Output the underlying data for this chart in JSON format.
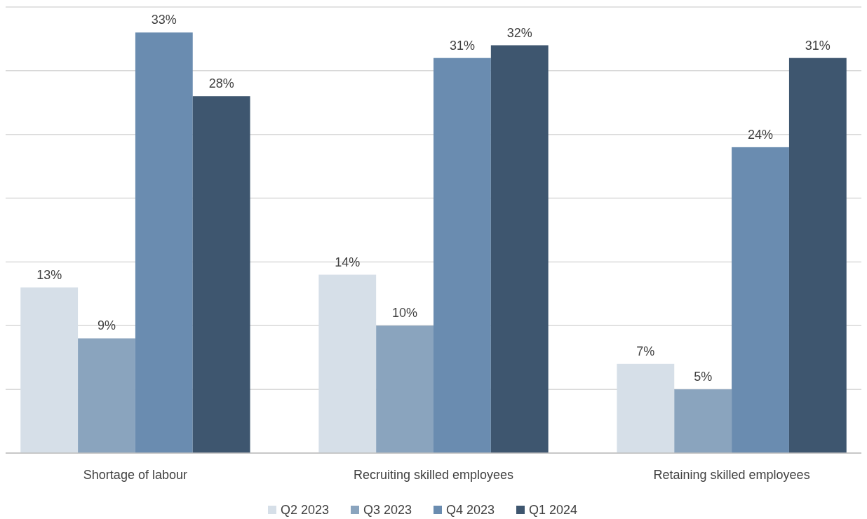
{
  "chart_data": {
    "type": "bar",
    "categories": [
      "Shortage of labour",
      "Recruiting skilled employees",
      "Retaining skilled employees"
    ],
    "series": [
      {
        "name": "Q2 2023",
        "color": "#d6dfe8",
        "values": [
          13,
          14,
          7
        ],
        "value_labels": [
          "13%",
          "14%",
          "7%"
        ]
      },
      {
        "name": "Q3 2023",
        "color": "#8aa4be",
        "values": [
          9,
          10,
          5
        ],
        "value_labels": [
          "9%",
          "10%",
          "5%"
        ]
      },
      {
        "name": "Q4 2023",
        "color": "#6a8cb0",
        "values": [
          33,
          31,
          24
        ],
        "value_labels": [
          "33%",
          "31%",
          "24%"
        ]
      },
      {
        "name": "Q1 2024",
        "color": "#3e566f",
        "values": [
          28,
          32,
          31
        ],
        "value_labels": [
          "28%",
          "32%",
          "31%"
        ]
      }
    ],
    "ylim": [
      0,
      35
    ],
    "yticks": [
      {
        "value": 0,
        "label": null
      },
      {
        "value": 5,
        "label": null
      },
      {
        "value": 10,
        "label": null
      },
      {
        "value": 15,
        "label": null
      },
      {
        "value": 20,
        "label": null
      },
      {
        "value": 25,
        "label": null
      },
      {
        "value": 30,
        "label": null
      },
      {
        "value": 35,
        "label": null
      }
    ],
    "tick_labels": "x",
    "grid": "y",
    "legend": "bottom"
  }
}
